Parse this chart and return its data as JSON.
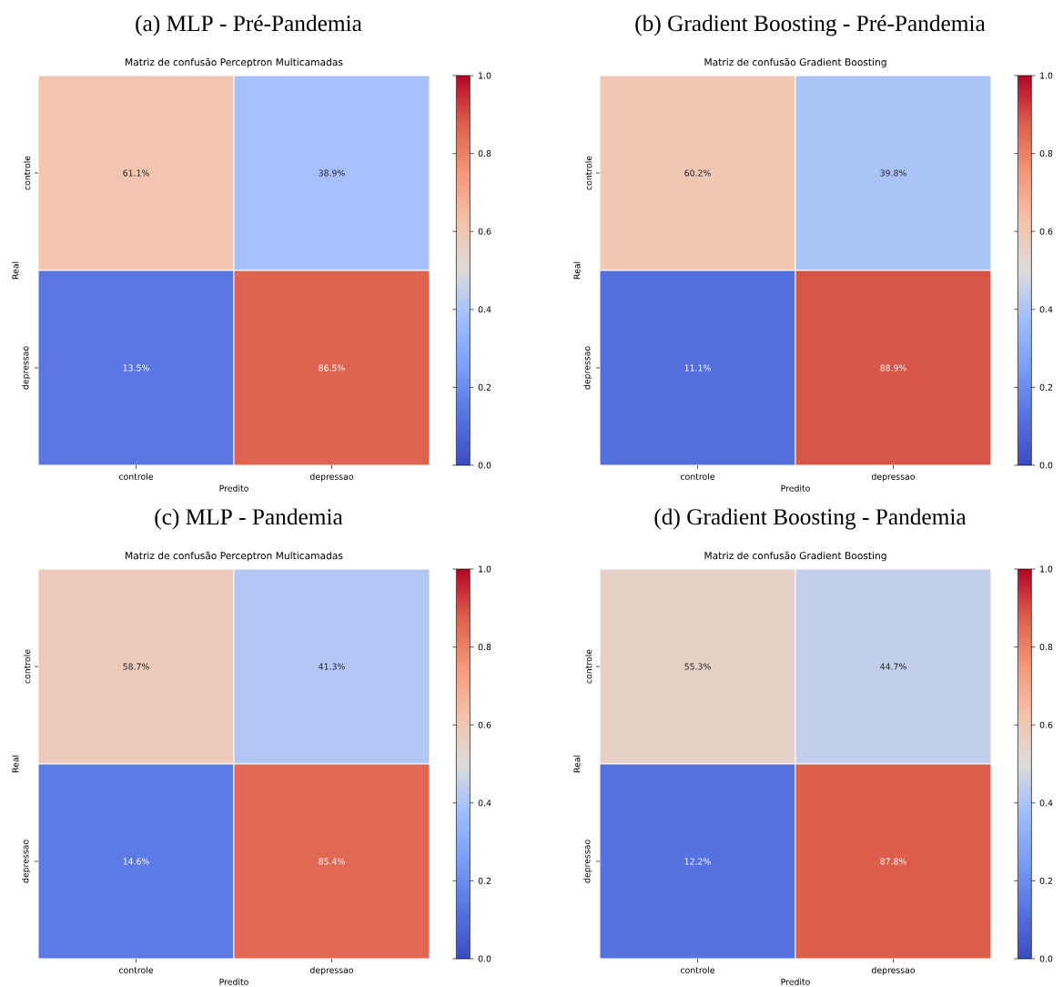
{
  "chart_data": [
    {
      "type": "heatmap",
      "title": "(a) MLP - Pré-Pandemia",
      "subtitle": "Matriz de confusão Perceptron Multicamadas",
      "xlabel": "Predito",
      "ylabel": "Real",
      "categories": [
        "controle",
        "depressao"
      ],
      "y_categories": [
        "controle",
        "depressao"
      ],
      "cells": [
        [
          0.611,
          0.389
        ],
        [
          0.135,
          0.865
        ]
      ],
      "cell_labels": [
        [
          "61.1%",
          "38.9%"
        ],
        [
          "13.5%",
          "86.5%"
        ]
      ],
      "clim": [
        0,
        1
      ],
      "cticks": [
        {
          "value": 0,
          "label": "0.0"
        },
        {
          "value": 0.2,
          "label": "0.2"
        },
        {
          "value": 0.4,
          "label": "0.4"
        },
        {
          "value": 0.6,
          "label": "0.6"
        },
        {
          "value": 0.8,
          "label": "0.8"
        },
        {
          "value": 1,
          "label": "1.0"
        }
      ]
    },
    {
      "type": "heatmap",
      "title": "(b) Gradient Boosting - Pré-Pandemia",
      "subtitle": "Matriz de confusão Gradient Boosting",
      "xlabel": "Predito",
      "ylabel": "Real",
      "categories": [
        "controle",
        "depressao"
      ],
      "y_categories": [
        "controle",
        "depressao"
      ],
      "cells": [
        [
          0.602,
          0.398
        ],
        [
          0.111,
          0.889
        ]
      ],
      "cell_labels": [
        [
          "60.2%",
          "39.8%"
        ],
        [
          "11.1%",
          "88.9%"
        ]
      ],
      "clim": [
        0,
        1
      ],
      "cticks": [
        {
          "value": 0,
          "label": "0.0"
        },
        {
          "value": 0.2,
          "label": "0.2"
        },
        {
          "value": 0.4,
          "label": "0.4"
        },
        {
          "value": 0.6,
          "label": "0.6"
        },
        {
          "value": 0.8,
          "label": "0.8"
        },
        {
          "value": 1,
          "label": "1.0"
        }
      ]
    },
    {
      "type": "heatmap",
      "title": "(c) MLP - Pandemia",
      "subtitle": "Matriz de confusão Perceptron Multicamadas",
      "xlabel": "Predito",
      "ylabel": "Real",
      "categories": [
        "controle",
        "depressao"
      ],
      "y_categories": [
        "controle",
        "depressao"
      ],
      "cells": [
        [
          0.587,
          0.413
        ],
        [
          0.146,
          0.854
        ]
      ],
      "cell_labels": [
        [
          "58.7%",
          "41.3%"
        ],
        [
          "14.6%",
          "85.4%"
        ]
      ],
      "clim": [
        0,
        1
      ],
      "cticks": [
        {
          "value": 0,
          "label": "0.0"
        },
        {
          "value": 0.2,
          "label": "0.2"
        },
        {
          "value": 0.4,
          "label": "0.4"
        },
        {
          "value": 0.6,
          "label": "0.6"
        },
        {
          "value": 0.8,
          "label": "0.8"
        },
        {
          "value": 1,
          "label": "1.0"
        }
      ]
    },
    {
      "type": "heatmap",
      "title": "(d) Gradient Boosting - Pandemia",
      "subtitle": "Matriz de confusão Gradient Boosting",
      "xlabel": "Predito",
      "ylabel": "Real",
      "categories": [
        "controle",
        "depressao"
      ],
      "y_categories": [
        "controle",
        "depressao"
      ],
      "cells": [
        [
          0.553,
          0.447
        ],
        [
          0.122,
          0.878
        ]
      ],
      "cell_labels": [
        [
          "55.3%",
          "44.7%"
        ],
        [
          "12.2%",
          "87.8%"
        ]
      ],
      "clim": [
        0,
        1
      ],
      "cticks": [
        {
          "value": 0,
          "label": "0.0"
        },
        {
          "value": 0.2,
          "label": "0.2"
        },
        {
          "value": 0.4,
          "label": "0.4"
        },
        {
          "value": 0.6,
          "label": "0.6"
        },
        {
          "value": 0.8,
          "label": "0.8"
        },
        {
          "value": 1,
          "label": "1.0"
        }
      ]
    }
  ]
}
